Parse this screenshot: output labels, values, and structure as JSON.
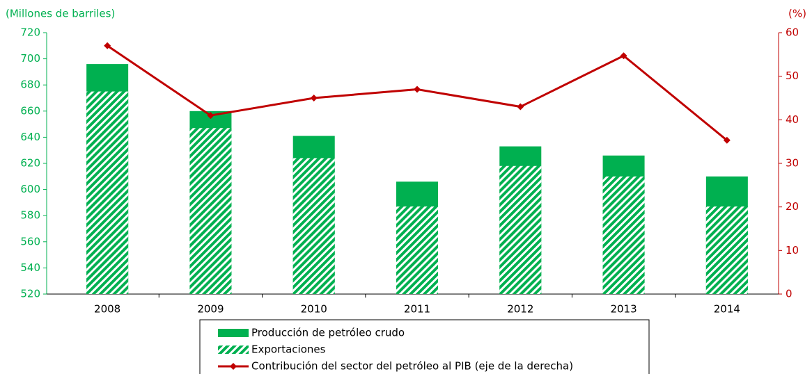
{
  "chart_data": {
    "type": "bar",
    "y_label": "(Millones de barriles)",
    "y2_label": "(%)",
    "categories": [
      "2008",
      "2009",
      "2010",
      "2011",
      "2012",
      "2013",
      "2014"
    ],
    "series": [
      {
        "name": "Producción de petróleo crudo",
        "type": "bar",
        "color": "#00b050",
        "values": [
          696,
          660,
          641,
          606,
          633,
          626,
          610
        ]
      },
      {
        "name": "Exportaciones",
        "type": "bar",
        "pattern": "hatch",
        "color": "#00b050",
        "values": [
          675,
          647,
          624,
          587,
          618,
          610,
          587
        ]
      },
      {
        "name": "Contribución del sector del petróleo al PIB (eje de la derecha)",
        "type": "line",
        "axis": "y2",
        "color": "#c00000",
        "values": [
          57,
          41,
          45,
          47,
          43,
          54.7,
          35.3
        ]
      }
    ],
    "ylim": [
      520,
      720
    ],
    "yticks": [
      520,
      540,
      560,
      580,
      600,
      620,
      640,
      660,
      680,
      700,
      720
    ],
    "y2lim": [
      0,
      60
    ],
    "y2ticks": [
      0,
      10,
      20,
      30,
      40,
      50,
      60
    ],
    "ycolor": "#00b050",
    "y2color": "#c00000"
  }
}
